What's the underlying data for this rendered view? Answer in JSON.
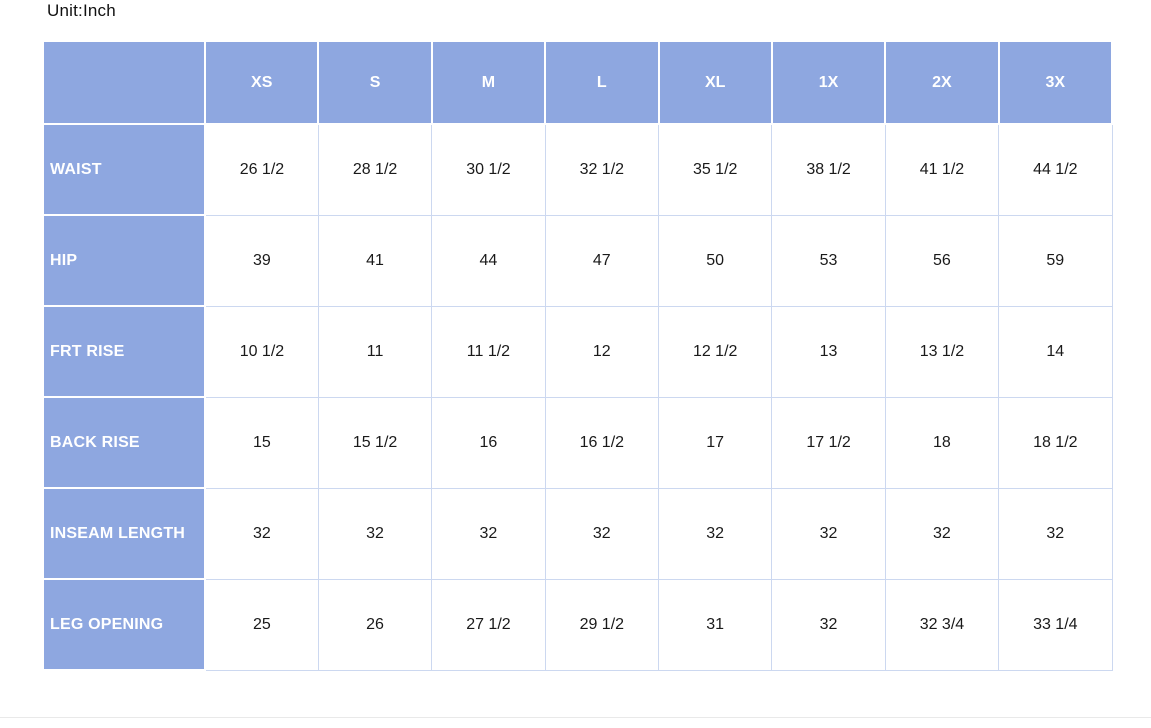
{
  "page": {
    "unit_label": "Unit:Inch"
  },
  "colors": {
    "header_blue": "#8EA7E0",
    "header_text": "#FFFFFF",
    "grid_light": "#CCD8F0",
    "text_dark": "#1A1A1A"
  },
  "chart_data": {
    "type": "table",
    "title": "Unit:Inch",
    "columns": [
      "",
      "XS",
      "S",
      "M",
      "L",
      "XL",
      "1X",
      "2X",
      "3X"
    ],
    "rows": [
      {
        "label": "WAIST",
        "values": [
          "26 1/2",
          "28 1/2",
          "30 1/2",
          "32 1/2",
          "35 1/2",
          "38 1/2",
          "41 1/2",
          "44 1/2"
        ]
      },
      {
        "label": "HIP",
        "values": [
          "39",
          "41",
          "44",
          "47",
          "50",
          "53",
          "56",
          "59"
        ]
      },
      {
        "label": "FRT RISE",
        "values": [
          "10 1/2",
          "11",
          "11 1/2",
          "12",
          "12 1/2",
          "13",
          "13 1/2",
          "14"
        ]
      },
      {
        "label": "BACK RISE",
        "values": [
          "15",
          "15 1/2",
          "16",
          "16 1/2",
          "17",
          "17 1/2",
          "18",
          "18 1/2"
        ]
      },
      {
        "label": "INSEAM LENGTH",
        "values": [
          "32",
          "32",
          "32",
          "32",
          "32",
          "32",
          "32",
          "32"
        ]
      },
      {
        "label": "LEG OPENING",
        "values": [
          "25",
          "26",
          "27 1/2",
          "29 1/2",
          "31",
          "32",
          "32 3/4",
          "33 1/4"
        ]
      }
    ]
  }
}
